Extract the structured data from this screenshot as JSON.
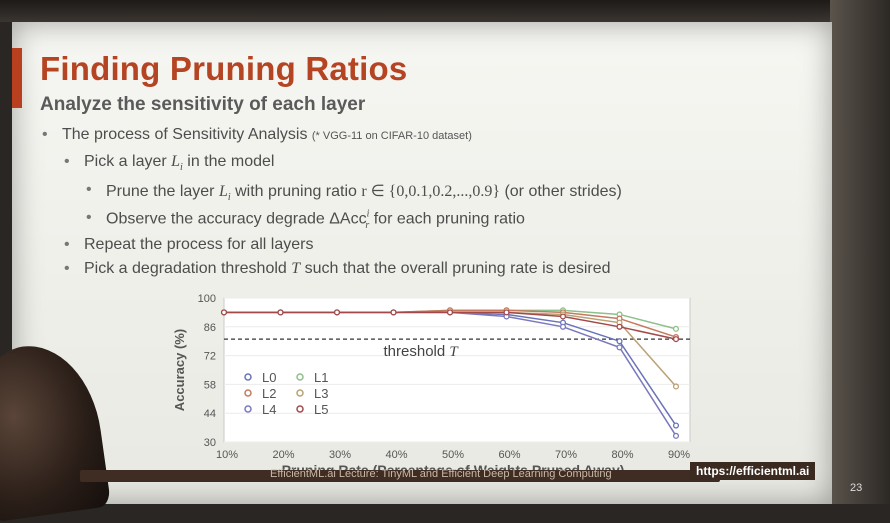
{
  "slide": {
    "title": "Finding Pruning Ratios",
    "subtitle": "Analyze the sensitivity of each layer",
    "bullets": {
      "b1": "The process of Sensitivity Analysis",
      "b1_note": "(* VGG-11 on CIFAR-10 dataset)",
      "b2_pre": "Pick a layer ",
      "b2_var": "L",
      "b2_sub": "i",
      "b2_post": " in the model",
      "b3_pre": "Prune the layer ",
      "b3_var": "L",
      "b3_sub": "i",
      "b3_mid": " with pruning ratio ",
      "b3_math": "r ∈ {0,0.1,0.2,...,0.9}",
      "b3_post": " (or other strides)",
      "b4_pre": "Observe the accuracy degrade  ",
      "b4_math": "ΔAcc",
      "b4_sup": "i",
      "b4_sub": "r",
      "b4_post": " for each pruning ratio",
      "b5": "Repeat the process for all layers",
      "b6_pre": "Pick a degradation threshold ",
      "b6_var": "T",
      "b6_post": " such that the overall pruning rate is desired"
    },
    "footer_left": "EfficientML.ai Lecture: TinyML and Efficient Deep Learning Computing",
    "footer_url": "https://efficientml.ai",
    "page_number": "23"
  },
  "colors": {
    "title": "#b54423",
    "L0": "#6a72b8",
    "L1": "#8fbf8a",
    "L2": "#c47a5e",
    "L3": "#b9a173",
    "L4": "#7a78bd",
    "L5": "#a24a4a",
    "threshold": "#333333"
  },
  "chart_data": {
    "type": "line",
    "x": [
      "10%",
      "20%",
      "30%",
      "40%",
      "50%",
      "60%",
      "70%",
      "80%",
      "90%"
    ],
    "xlabel": "Pruning Rate (Percentage of Weights Pruned Away)",
    "ylabel": "Accuracy (%)",
    "ylim": [
      30,
      100
    ],
    "yticks": [
      "100",
      "86",
      "72",
      "58",
      "44",
      "30"
    ],
    "ytick_values": [
      100,
      86,
      72,
      58,
      44,
      30
    ],
    "threshold": {
      "value": 80,
      "label_pre": "threshold ",
      "label_var": "T"
    },
    "legend_placement": "bottom-left",
    "series": [
      {
        "name": "L0",
        "values": [
          93,
          93,
          93,
          93,
          93,
          92,
          88,
          79,
          38
        ]
      },
      {
        "name": "L1",
        "values": [
          93,
          93,
          93,
          93,
          94,
          94,
          94,
          92,
          85
        ]
      },
      {
        "name": "L2",
        "values": [
          93,
          93,
          93,
          93,
          94,
          94,
          93,
          90,
          81
        ]
      },
      {
        "name": "L3",
        "values": [
          93,
          93,
          93,
          93,
          93,
          93,
          92,
          88,
          57
        ]
      },
      {
        "name": "L4",
        "values": [
          93,
          93,
          93,
          93,
          93,
          91,
          86,
          76,
          33
        ]
      },
      {
        "name": "L5",
        "values": [
          93,
          93,
          93,
          93,
          93,
          93,
          91,
          86,
          80
        ]
      }
    ]
  }
}
